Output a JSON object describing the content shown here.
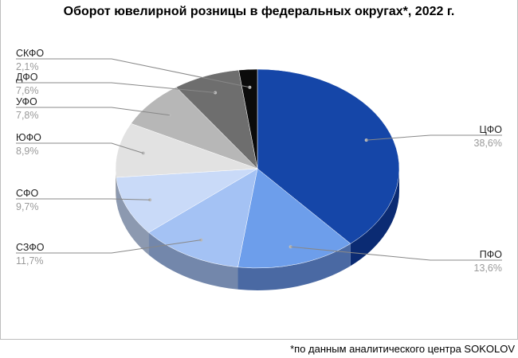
{
  "chart_data": {
    "type": "pie",
    "title": "Оборот ювелирной розницы в федеральных округах*, 2022 г.",
    "footnote": "*по данным аналитического центра SOKOLOV",
    "style": "3d",
    "legend": "none",
    "slices": [
      {
        "label": "ЦФО",
        "value": 38.6,
        "display": "38,6%",
        "color": "#1546a8",
        "side": "#0b2b73"
      },
      {
        "label": "ПФО",
        "value": 13.6,
        "display": "13,6%",
        "color": "#6d9eeb",
        "side": "#4a69a3"
      },
      {
        "label": "СЗФО",
        "value": 11.7,
        "display": "11,7%",
        "color": "#a4c2f4",
        "side": "#7387ab"
      },
      {
        "label": "СФО",
        "value": 9.7,
        "display": "9,7%",
        "color": "#c9daf8",
        "side": "#8c99b0"
      },
      {
        "label": "ЮФО",
        "value": 8.9,
        "display": "8,9%",
        "color": "#e2e2e2",
        "side": "#9e9e9e"
      },
      {
        "label": "УФО",
        "value": 7.8,
        "display": "7,8%",
        "color": "#b7b7b7",
        "side": "#808080"
      },
      {
        "label": "ДФО",
        "value": 7.6,
        "display": "7,6%",
        "color": "#6e6e6e",
        "side": "#4d4d4d"
      },
      {
        "label": "СКФО",
        "value": 2.1,
        "display": "2,1%",
        "color": "#0b0b0b",
        "side": "#000000"
      }
    ]
  }
}
